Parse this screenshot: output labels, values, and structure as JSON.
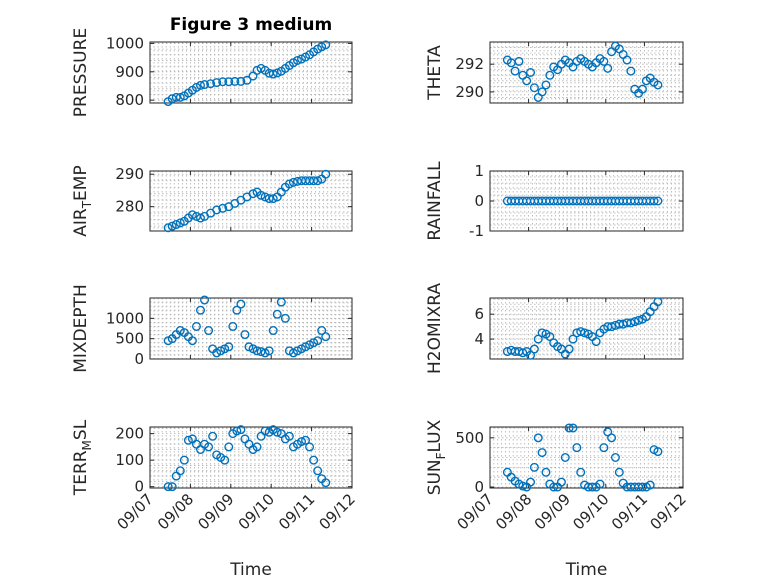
{
  "title": "Figure 3 medium",
  "marker_color": "#0072BD",
  "x_ticks": [
    "09/07",
    "09/08",
    "09/09",
    "09/10",
    "09/11",
    "09/12"
  ],
  "x_label": "Time",
  "chart_data": [
    {
      "type": "scatter",
      "title": "Figure 3 medium",
      "ylabel": "PRESSURE",
      "ylabel_sub": "",
      "ylabel_tail": "",
      "xlim": [
        0,
        5
      ],
      "ylim": [
        790,
        1005
      ],
      "yticks": [
        800,
        900,
        1000
      ],
      "x": [
        0.45,
        0.55,
        0.65,
        0.75,
        0.85,
        0.95,
        1.05,
        1.15,
        1.25,
        1.35,
        1.5,
        1.65,
        1.8,
        1.95,
        2.1,
        2.25,
        2.4,
        2.55,
        2.65,
        2.75,
        2.85,
        2.95,
        3.05,
        3.15,
        3.25,
        3.35,
        3.45,
        3.55,
        3.65,
        3.75,
        3.85,
        3.95,
        4.05,
        4.15,
        4.25,
        4.35
      ],
      "y": [
        795,
        805,
        810,
        810,
        815,
        825,
        835,
        845,
        852,
        855,
        858,
        862,
        865,
        865,
        866,
        866,
        870,
        885,
        905,
        912,
        905,
        895,
        892,
        896,
        902,
        912,
        922,
        932,
        940,
        945,
        952,
        960,
        970,
        980,
        988,
        995
      ]
    },
    {
      "type": "scatter",
      "title": "",
      "ylabel": "THETA",
      "ylabel_sub": "",
      "ylabel_tail": "",
      "xlim": [
        0,
        5
      ],
      "ylim": [
        289.2,
        293.6
      ],
      "yticks": [
        290,
        292
      ],
      "x": [
        0.45,
        0.55,
        0.65,
        0.75,
        0.85,
        0.95,
        1.05,
        1.15,
        1.25,
        1.35,
        1.45,
        1.55,
        1.65,
        1.75,
        1.85,
        1.95,
        2.05,
        2.15,
        2.25,
        2.35,
        2.45,
        2.55,
        2.65,
        2.75,
        2.85,
        2.95,
        3.05,
        3.15,
        3.25,
        3.35,
        3.45,
        3.55,
        3.65,
        3.75,
        3.85,
        3.95,
        4.05,
        4.15,
        4.25,
        4.35
      ],
      "y": [
        292.3,
        292.1,
        291.5,
        292.2,
        291.2,
        290.8,
        291.4,
        290.3,
        289.6,
        290.0,
        290.5,
        291.2,
        291.8,
        291.6,
        292.0,
        292.3,
        292.1,
        291.8,
        292.2,
        292.4,
        292.2,
        292.0,
        291.8,
        292.1,
        292.4,
        292.2,
        291.7,
        292.9,
        293.3,
        293.1,
        292.7,
        292.3,
        291.5,
        290.2,
        289.9,
        290.2,
        290.8,
        291.0,
        290.7,
        290.5
      ]
    },
    {
      "type": "scatter",
      "title": "",
      "ylabel": "AIR",
      "ylabel_sub": "T",
      "ylabel_tail": "EMP",
      "xlim": [
        0,
        5
      ],
      "ylim": [
        272.5,
        291
      ],
      "yticks": [
        280,
        290
      ],
      "x": [
        0.45,
        0.55,
        0.65,
        0.75,
        0.85,
        0.95,
        1.05,
        1.15,
        1.25,
        1.35,
        1.5,
        1.65,
        1.8,
        1.95,
        2.1,
        2.25,
        2.4,
        2.55,
        2.65,
        2.75,
        2.85,
        2.95,
        3.05,
        3.15,
        3.25,
        3.35,
        3.45,
        3.55,
        3.65,
        3.75,
        3.85,
        3.95,
        4.05,
        4.15,
        4.25,
        4.35
      ],
      "y": [
        273.5,
        274.0,
        274.5,
        275.0,
        275.5,
        276.5,
        277.5,
        277.0,
        276.5,
        277.0,
        278.0,
        279.0,
        279.5,
        280.0,
        281.0,
        282.0,
        283.0,
        284.0,
        284.5,
        283.5,
        283.0,
        282.5,
        282.5,
        283.0,
        284.5,
        286.0,
        287.0,
        287.5,
        287.8,
        288.0,
        288.0,
        288.0,
        288.0,
        288.0,
        288.5,
        290.0
      ]
    },
    {
      "type": "scatter",
      "title": "",
      "ylabel": "RAINFALL",
      "ylabel_sub": "",
      "ylabel_tail": "",
      "xlim": [
        0,
        5
      ],
      "ylim": [
        -1,
        1
      ],
      "yticks": [
        -1,
        0,
        1
      ],
      "x": [
        0.45,
        0.55,
        0.65,
        0.75,
        0.85,
        0.95,
        1.05,
        1.15,
        1.25,
        1.35,
        1.45,
        1.55,
        1.65,
        1.75,
        1.85,
        1.95,
        2.05,
        2.15,
        2.25,
        2.35,
        2.45,
        2.55,
        2.65,
        2.75,
        2.85,
        2.95,
        3.05,
        3.15,
        3.25,
        3.35,
        3.45,
        3.55,
        3.65,
        3.75,
        3.85,
        3.95,
        4.05,
        4.15,
        4.25,
        4.35
      ],
      "y": [
        0,
        0,
        0,
        0,
        0,
        0,
        0,
        0,
        0,
        0,
        0,
        0,
        0,
        0,
        0,
        0,
        0,
        0,
        0,
        0,
        0,
        0,
        0,
        0,
        0,
        0,
        0,
        0,
        0,
        0,
        0,
        0,
        0,
        0,
        0,
        0,
        0,
        0,
        0,
        0
      ]
    },
    {
      "type": "scatter",
      "title": "",
      "ylabel": "MIXDEPTH",
      "ylabel_sub": "",
      "ylabel_tail": "",
      "xlim": [
        0,
        5
      ],
      "ylim": [
        0,
        1500
      ],
      "yticks": [
        0,
        500,
        1000
      ],
      "x": [
        0.45,
        0.55,
        0.65,
        0.75,
        0.85,
        0.95,
        1.05,
        1.15,
        1.25,
        1.35,
        1.45,
        1.55,
        1.65,
        1.75,
        1.85,
        1.95,
        2.05,
        2.15,
        2.25,
        2.35,
        2.45,
        2.55,
        2.65,
        2.75,
        2.85,
        2.95,
        3.05,
        3.15,
        3.25,
        3.35,
        3.45,
        3.55,
        3.65,
        3.75,
        3.85,
        3.95,
        4.05,
        4.15,
        4.25,
        4.35
      ],
      "y": [
        450,
        500,
        600,
        700,
        650,
        550,
        450,
        800,
        1200,
        1450,
        700,
        250,
        150,
        200,
        250,
        300,
        800,
        1200,
        1350,
        600,
        300,
        250,
        200,
        180,
        150,
        200,
        700,
        1100,
        1400,
        1000,
        200,
        150,
        200,
        250,
        300,
        350,
        400,
        450,
        700,
        550
      ]
    },
    {
      "type": "scatter",
      "title": "",
      "ylabel": "H2OMIXRA",
      "ylabel_sub": "",
      "ylabel_tail": "",
      "xlim": [
        0,
        5
      ],
      "ylim": [
        2.4,
        7.3
      ],
      "yticks": [
        4,
        6
      ],
      "x": [
        0.45,
        0.55,
        0.65,
        0.75,
        0.85,
        0.95,
        1.05,
        1.15,
        1.25,
        1.35,
        1.45,
        1.55,
        1.65,
        1.75,
        1.85,
        1.95,
        2.05,
        2.15,
        2.25,
        2.35,
        2.45,
        2.55,
        2.65,
        2.75,
        2.85,
        2.95,
        3.05,
        3.15,
        3.25,
        3.35,
        3.45,
        3.55,
        3.65,
        3.75,
        3.85,
        3.95,
        4.05,
        4.15,
        4.25,
        4.35
      ],
      "y": [
        3.0,
        3.1,
        3.0,
        3.0,
        2.9,
        3.0,
        2.7,
        3.2,
        4.0,
        4.5,
        4.4,
        4.2,
        3.7,
        3.4,
        3.2,
        2.8,
        3.2,
        4.0,
        4.5,
        4.6,
        4.5,
        4.4,
        4.2,
        3.8,
        4.5,
        4.8,
        5.0,
        5.0,
        5.1,
        5.2,
        5.2,
        5.3,
        5.3,
        5.4,
        5.5,
        5.6,
        5.8,
        6.2,
        6.6,
        7.0
      ]
    },
    {
      "type": "scatter",
      "title": "",
      "ylabel": "TERR",
      "ylabel_sub": "M",
      "ylabel_tail": "SL",
      "xlim": [
        0,
        5
      ],
      "ylim": [
        -5,
        225
      ],
      "yticks": [
        0,
        100,
        200
      ],
      "x": [
        0.45,
        0.55,
        0.65,
        0.75,
        0.85,
        0.95,
        1.05,
        1.15,
        1.25,
        1.35,
        1.45,
        1.55,
        1.65,
        1.75,
        1.85,
        1.95,
        2.05,
        2.15,
        2.25,
        2.35,
        2.45,
        2.55,
        2.65,
        2.75,
        2.85,
        2.95,
        3.05,
        3.15,
        3.25,
        3.35,
        3.45,
        3.55,
        3.65,
        3.75,
        3.85,
        3.95,
        4.05,
        4.15,
        4.25,
        4.35
      ],
      "y": [
        0,
        0,
        40,
        60,
        100,
        175,
        180,
        160,
        140,
        160,
        150,
        190,
        120,
        110,
        100,
        150,
        200,
        210,
        215,
        180,
        160,
        140,
        150,
        190,
        210,
        205,
        215,
        205,
        200,
        180,
        190,
        150,
        160,
        170,
        175,
        150,
        100,
        60,
        30,
        15
      ]
    },
    {
      "type": "scatter",
      "title": "",
      "ylabel": "SUN",
      "ylabel_sub": "F",
      "ylabel_tail": "LUX",
      "xlim": [
        0,
        5
      ],
      "ylim": [
        -10,
        610
      ],
      "yticks": [
        0,
        500
      ],
      "x": [
        0.45,
        0.55,
        0.65,
        0.75,
        0.85,
        0.95,
        1.05,
        1.15,
        1.25,
        1.35,
        1.45,
        1.55,
        1.65,
        1.75,
        1.85,
        1.95,
        2.05,
        2.15,
        2.25,
        2.35,
        2.45,
        2.55,
        2.65,
        2.75,
        2.85,
        2.95,
        3.05,
        3.15,
        3.25,
        3.35,
        3.45,
        3.55,
        3.65,
        3.75,
        3.85,
        3.95,
        4.05,
        4.15,
        4.25,
        4.35
      ],
      "y": [
        150,
        100,
        60,
        30,
        10,
        0,
        50,
        200,
        500,
        350,
        150,
        30,
        0,
        0,
        50,
        300,
        600,
        600,
        400,
        150,
        20,
        0,
        0,
        0,
        30,
        400,
        560,
        500,
        300,
        150,
        40,
        0,
        0,
        0,
        0,
        0,
        0,
        20,
        380,
        360
      ]
    }
  ]
}
